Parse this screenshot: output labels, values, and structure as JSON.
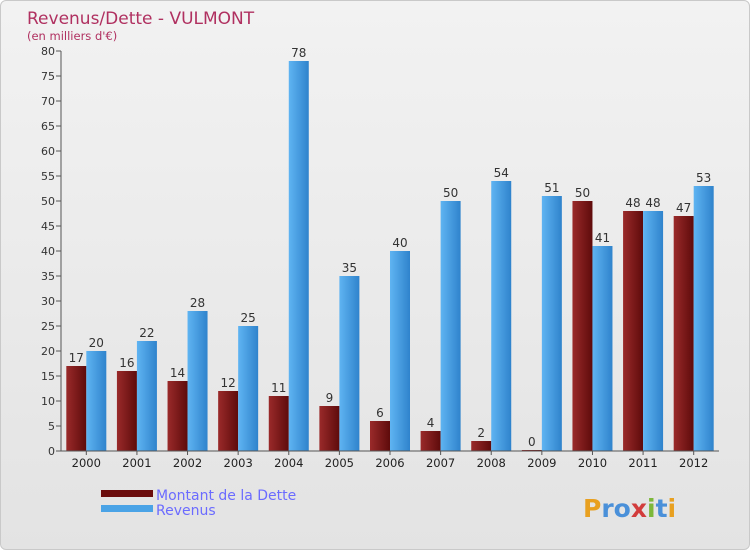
{
  "chart_data": {
    "type": "bar",
    "title": "Revenus/Dette - VULMONT",
    "subtitle": "(en milliers d'€)",
    "categories": [
      "2000",
      "2001",
      "2002",
      "2003",
      "2004",
      "2005",
      "2006",
      "2007",
      "2008",
      "2009",
      "2010",
      "2011",
      "2012"
    ],
    "series": [
      {
        "name": "Montant de la Dette",
        "color": "#7a1515",
        "values": [
          17,
          16,
          14,
          12,
          11,
          9,
          6,
          4,
          2,
          0,
          50,
          48,
          47
        ]
      },
      {
        "name": "Revenus",
        "color": "#4aa3e6",
        "values": [
          20,
          22,
          28,
          25,
          78,
          35,
          40,
          50,
          54,
          51,
          41,
          48,
          53
        ]
      }
    ],
    "ylim": [
      0,
      80
    ],
    "yticks": [
      0,
      5,
      10,
      15,
      20,
      25,
      30,
      35,
      40,
      45,
      50,
      55,
      60,
      65,
      70,
      75,
      80
    ],
    "grid": false,
    "legend": "bottom-left"
  },
  "branding": {
    "logo_letters": [
      "P",
      "r",
      "o",
      "x",
      "i",
      "t",
      "i"
    ],
    "logo_colors": [
      "#e8a020",
      "#4a90d9",
      "#4a90d9",
      "#d23c3c",
      "#7cb83a",
      "#4a90d9",
      "#e8a020"
    ]
  }
}
